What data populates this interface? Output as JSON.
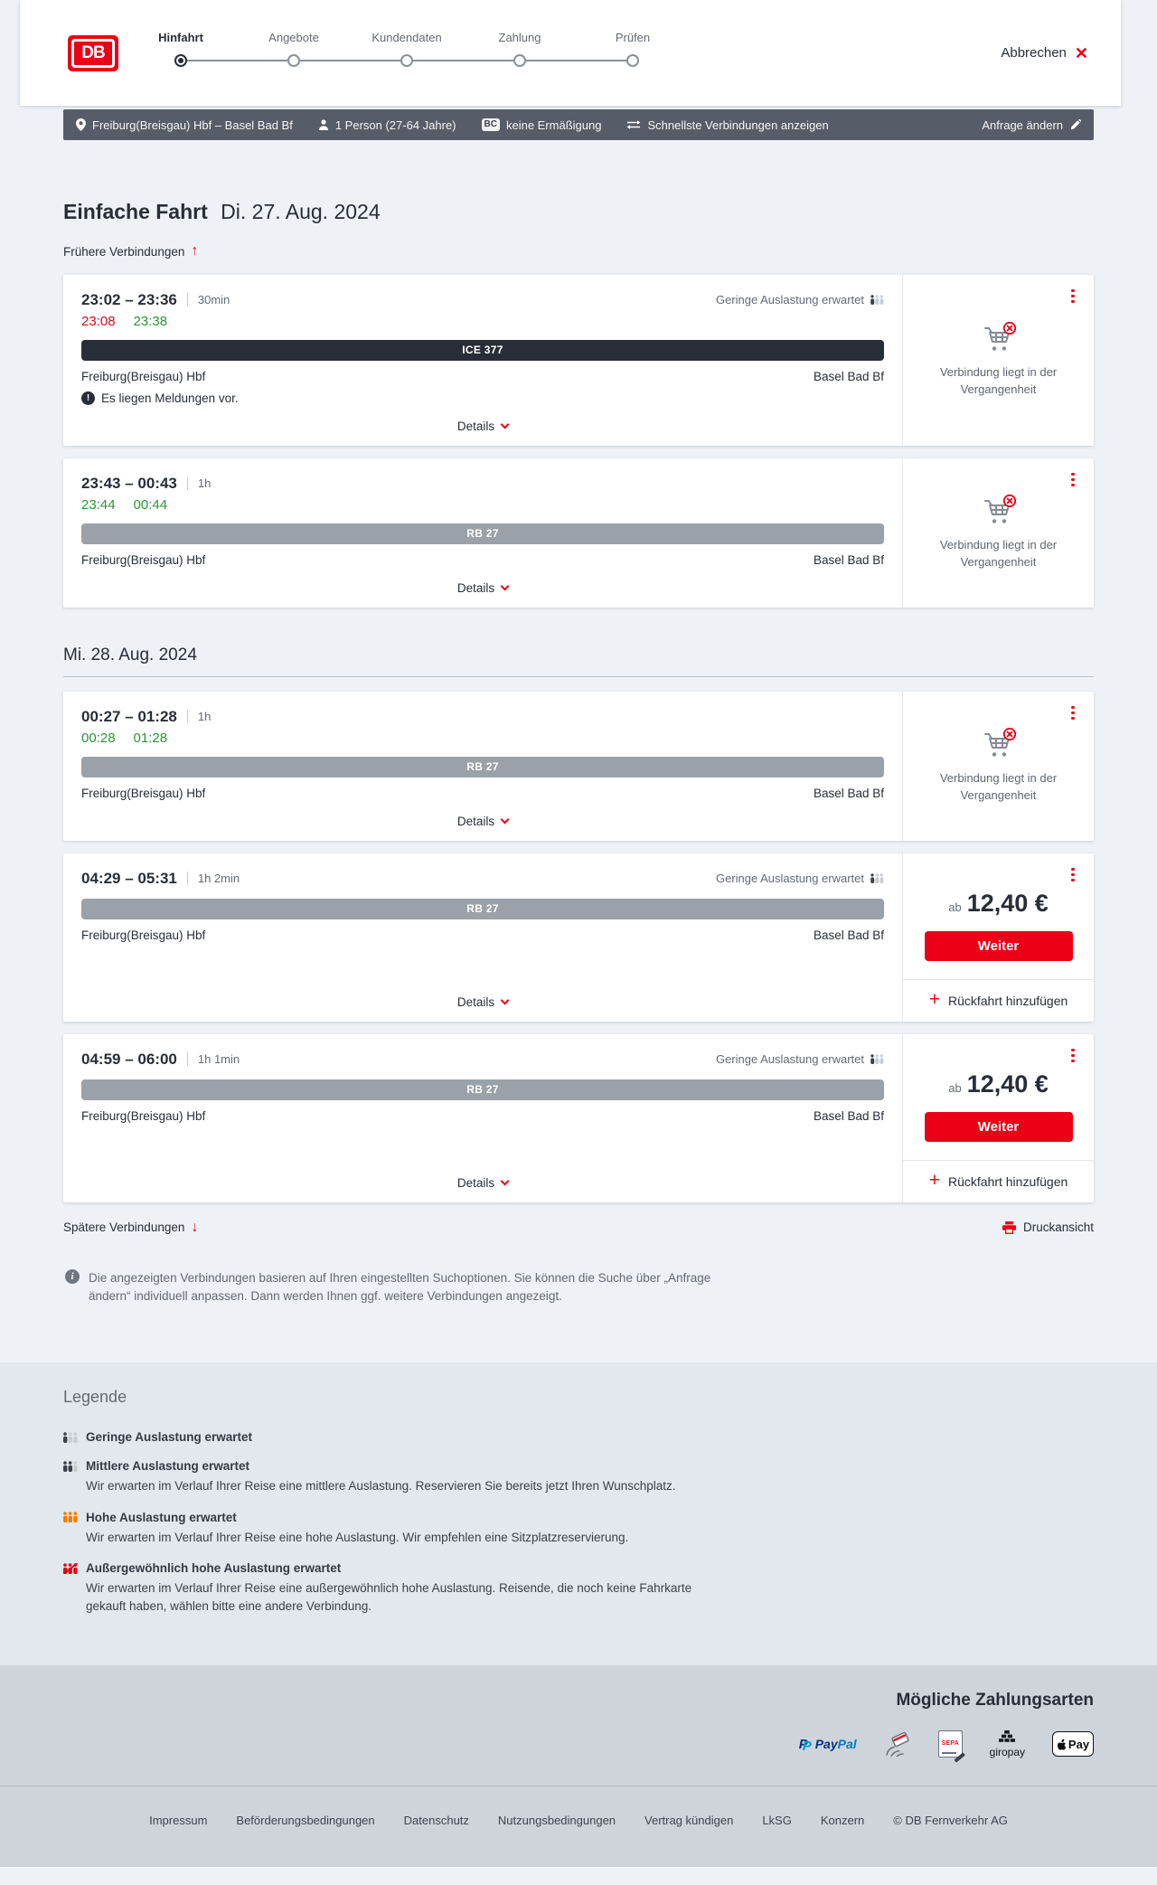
{
  "colors": {
    "brand_red": "#ec0016",
    "dark_navy": "#282d37",
    "gray_text": "#646973",
    "late_red": "#dc0a1e",
    "ontime_green": "#2c9537",
    "criteria_bar_bg": "#575d68",
    "rb_bar_gray": "#9ba1a8",
    "occupancy_orange": "#f27e00"
  },
  "header": {
    "logo_text": "DB",
    "cancel_label": "Abbrechen",
    "steps": [
      {
        "label": "Hinfahrt",
        "active": true
      },
      {
        "label": "Angebote",
        "active": false
      },
      {
        "label": "Kundendaten",
        "active": false
      },
      {
        "label": "Zahlung",
        "active": false
      },
      {
        "label": "Prüfen",
        "active": false
      }
    ]
  },
  "criteria_bar": {
    "route": "Freiburg(Breisgau) Hbf – Basel Bad Bf",
    "passengers": "1 Person (27-64 Jahre)",
    "bahncard_badge": "BC",
    "discount": "keine Ermäßigung",
    "fastest_toggle": "Schnellste Verbindungen anzeigen",
    "edit_label": "Anfrage ändern"
  },
  "journey": {
    "title": "Einfache Fahrt",
    "date": "Di. 27. Aug. 2024",
    "earlier_label": "Frühere Verbindungen",
    "later_label": "Spätere Verbindungen",
    "print_label": "Druckansicht",
    "info_text": "Die angezeigten Verbindungen basieren auf Ihren eingestellten Suchoptionen. Sie können die Suche über „Anfrage ändern“ individuell anpassen. Dann werden Ihnen ggf. weitere Verbindungen angezeigt."
  },
  "groups": [
    {
      "heading": null,
      "connections": [
        {
          "time_range": "23:02 – 23:36",
          "duration": "30min",
          "realtime": {
            "dep": "23:08",
            "dep_late": true,
            "arr": "23:38",
            "arr_late": false
          },
          "occupancy_label": "Geringe Auslastung erwartet",
          "train": "ICE 377",
          "train_style": "ice",
          "from": "Freiburg(Breisgau) Hbf",
          "to": "Basel Bad Bf",
          "message": "Es liegen Meldungen vor.",
          "details_label": "Details",
          "panel": {
            "type": "past",
            "label": "Verbindung liegt in der Vergangenheit"
          }
        },
        {
          "time_range": "23:43 – 00:43",
          "duration": "1h",
          "realtime": {
            "dep": "23:44",
            "dep_late": false,
            "arr": "00:44",
            "arr_late": false
          },
          "occupancy_label": null,
          "train": "RB 27",
          "train_style": "rb",
          "from": "Freiburg(Breisgau) Hbf",
          "to": "Basel Bad Bf",
          "message": null,
          "details_label": "Details",
          "panel": {
            "type": "past",
            "label": "Verbindung liegt in der Vergangenheit"
          }
        }
      ]
    },
    {
      "heading": "Mi. 28. Aug. 2024",
      "connections": [
        {
          "time_range": "00:27 – 01:28",
          "duration": "1h",
          "realtime": {
            "dep": "00:28",
            "dep_late": false,
            "arr": "01:28",
            "arr_late": false
          },
          "occupancy_label": null,
          "train": "RB 27",
          "train_style": "rb",
          "from": "Freiburg(Breisgau) Hbf",
          "to": "Basel Bad Bf",
          "message": null,
          "details_label": "Details",
          "panel": {
            "type": "past",
            "label": "Verbindung liegt in der Vergangenheit"
          }
        },
        {
          "time_range": "04:29 – 05:31",
          "duration": "1h 2min",
          "realtime": null,
          "occupancy_label": "Geringe Auslastung erwartet",
          "train": "RB 27",
          "train_style": "rb",
          "from": "Freiburg(Breisgau) Hbf",
          "to": "Basel Bad Bf",
          "message": null,
          "details_label": "Details",
          "panel": {
            "type": "price",
            "prefix": "ab",
            "amount": "12,40 €",
            "cta": "Weiter",
            "add_return": "Rückfahrt hinzufügen"
          }
        },
        {
          "time_range": "04:59 – 06:00",
          "duration": "1h 1min",
          "realtime": null,
          "occupancy_label": "Geringe Auslastung erwartet",
          "train": "RB 27",
          "train_style": "rb",
          "from": "Freiburg(Breisgau) Hbf",
          "to": "Basel Bad Bf",
          "message": null,
          "details_label": "Details",
          "panel": {
            "type": "price",
            "prefix": "ab",
            "amount": "12,40 €",
            "cta": "Weiter",
            "add_return": "Rückfahrt hinzufügen"
          }
        }
      ]
    }
  ],
  "legend": {
    "title": "Legende",
    "items": [
      {
        "level": "low",
        "title": "Geringe Auslastung erwartet",
        "desc": null
      },
      {
        "level": "medium",
        "title": "Mittlere Auslastung erwartet",
        "desc": "Wir erwarten im Verlauf Ihrer Reise eine mittlere Auslastung. Reservieren Sie bereits jetzt Ihren Wunschplatz."
      },
      {
        "level": "high",
        "title": "Hohe Auslastung erwartet",
        "desc": "Wir erwarten im Verlauf Ihrer Reise eine hohe Auslastung. Wir empfehlen eine Sitzplatzreservierung."
      },
      {
        "level": "very-high",
        "title": "Außergewöhnlich hohe Auslastung erwartet",
        "desc": "Wir erwarten im Verlauf Ihrer Reise eine außergewöhnlich hohe Auslastung. Reisende, die noch keine Fahrkarte gekauft haben, wählen bitte eine andere Verbindung."
      }
    ]
  },
  "payments": {
    "title": "Mögliche Zahlungsarten",
    "methods": [
      {
        "name": "PayPal",
        "visible_text": "PayPal"
      },
      {
        "name": "Kreditkarte",
        "visible_text": ""
      },
      {
        "name": "SEPA-Lastschrift",
        "visible_text": "SEPA"
      },
      {
        "name": "giropay",
        "visible_text": "giropay"
      },
      {
        "name": "Apple Pay",
        "visible_text": "Pay"
      }
    ]
  },
  "footer": {
    "links": [
      "Impressum",
      "Beförderungsbedingungen",
      "Datenschutz",
      "Nutzungsbedingungen",
      "Vertrag kündigen",
      "LkSG",
      "Konzern",
      "© DB Fernverkehr AG"
    ]
  }
}
